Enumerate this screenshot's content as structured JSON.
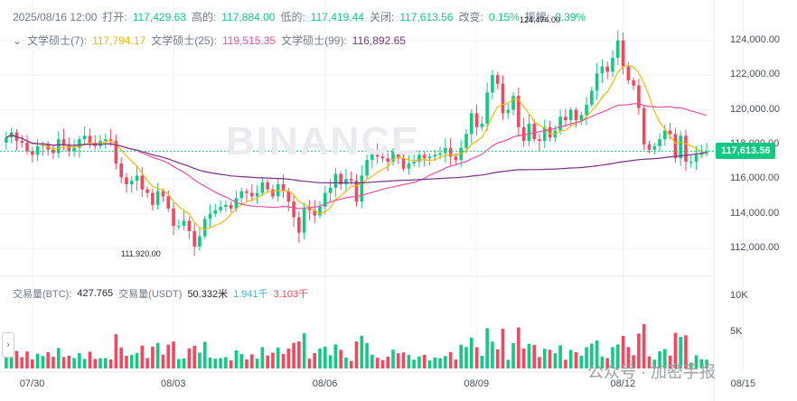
{
  "header": {
    "date": "2025/08/16 12:00",
    "open_label": "打开:",
    "open": "117,429.63",
    "high_label": "高的:",
    "high": "117,884.00",
    "low_label": "低的:",
    "low": "117,419.44",
    "close_label": "关闭:",
    "close": "117,613.56",
    "change_label": "改变:",
    "change": "0.15%",
    "amplitude_label": "振幅:",
    "amplitude": "0.39%"
  },
  "ma": {
    "ma7_label": "文学硕士(7):",
    "ma7": "117,794.17",
    "ma25_label": "文学硕士(25):",
    "ma25": "119,515.35",
    "ma99_label": "文学硕士(99):",
    "ma99": "116,892.65"
  },
  "volume_header": {
    "label_btc": "交易量(BTC):",
    "vol_btc": "427.765",
    "label_usdt": "交易量(USDT)",
    "vol_usdt": "50.332米",
    "ma_a": "1.941千",
    "ma_b": "3.103千"
  },
  "current_price": "117,613.56",
  "watermark": "BINANCE",
  "source_mark": "公众号 · 加密手报",
  "high_marker": "124,474.00",
  "low_marker": "111,920.00",
  "colors": {
    "up": "#0ecb81",
    "down": "#f6465d",
    "ma7": "#f0b90b",
    "ma25": "#e84f9f",
    "ma99": "#7b2f86",
    "volma_a": "#3cb4d8",
    "volma_b": "#c81e4a"
  },
  "chart_data": {
    "type": "candlestick",
    "y_ticks": [
      "112,000.00",
      "114,000.00",
      "116,000.00",
      "118,000.00",
      "120,000.00",
      "122,000.00",
      "124,000.00"
    ],
    "ylim": [
      110800,
      125400
    ],
    "x_ticks": [
      "07/30",
      "08/03",
      "08/06",
      "08/09",
      "08/12",
      "08/15"
    ],
    "volume_ticks": [
      "5K",
      "10K"
    ],
    "volume_ylim": [
      0,
      11000
    ],
    "closes": [
      118400,
      118700,
      118200,
      118100,
      117600,
      117400,
      117900,
      118000,
      117700,
      117500,
      118300,
      118000,
      117600,
      117800,
      118300,
      118500,
      118100,
      117900,
      118200,
      118300,
      118200,
      116900,
      116100,
      115700,
      115900,
      116200,
      115400,
      115200,
      114500,
      115300,
      115000,
      114300,
      113300,
      113300,
      113600,
      113000,
      112100,
      112700,
      113700,
      114000,
      114200,
      114400,
      114500,
      114300,
      114900,
      115300,
      115200,
      115000,
      115200,
      115800,
      115400,
      115000,
      115700,
      115300,
      114700,
      113800,
      112900,
      114300,
      114200,
      113900,
      114400,
      115200,
      115500,
      116300,
      115700,
      116000,
      115900,
      114700,
      116200,
      117100,
      117500,
      117300,
      117200,
      117000,
      117600,
      117200,
      116600,
      116900,
      117000,
      117400,
      117200,
      117300,
      117400,
      117500,
      117800,
      117300,
      117100,
      117800,
      118600,
      119800,
      119000,
      119200,
      121000,
      122000,
      121500,
      119800,
      120000,
      120800,
      119000,
      118200,
      119200,
      118300,
      118200,
      119000,
      118400,
      118800,
      119600,
      119400,
      120000,
      119400,
      119700,
      120300,
      121100,
      122100,
      122500,
      122200,
      123000,
      124000,
      122500,
      121700,
      121400,
      120100,
      118000,
      117700,
      117900,
      118300,
      118800,
      118600,
      117200,
      118500,
      117000,
      117000,
      117400,
      117500,
      117600
    ]
  }
}
